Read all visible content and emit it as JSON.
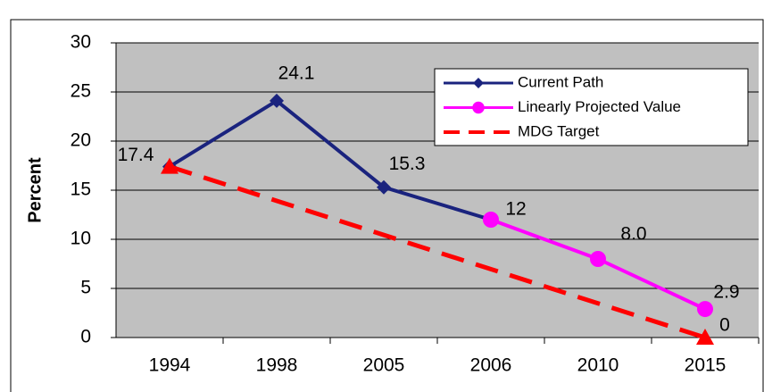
{
  "chart_data": {
    "type": "line",
    "y_label": "Percent",
    "categories": [
      "1994",
      "1998",
      "2005",
      "2006",
      "2010",
      "2015"
    ],
    "ylim": [
      0,
      30
    ],
    "yticks": [
      0,
      5,
      10,
      15,
      20,
      25,
      30
    ],
    "grid": true,
    "legend_position": "upper right",
    "series": [
      {
        "name": "Current Path",
        "color": "#1a237e",
        "marker": "diamond",
        "dash": false,
        "values": [
          17.4,
          24.1,
          15.3,
          12,
          null,
          null
        ],
        "value_labels": [
          "17.4",
          "24.1",
          "15.3",
          "12",
          null,
          null
        ]
      },
      {
        "name": "Linearly Projected Value",
        "color": "#ff00ff",
        "marker": "circle",
        "dash": false,
        "values": [
          null,
          null,
          null,
          12,
          8.0,
          2.9
        ],
        "value_labels": [
          null,
          null,
          null,
          null,
          "8.0",
          "2.9"
        ]
      },
      {
        "name": "MDG Target",
        "color": "#ff0000",
        "marker": "triangle",
        "dash": true,
        "x": [
          "1994",
          "2015"
        ],
        "values": [
          17.4,
          0
        ],
        "value_labels": [
          null,
          "0"
        ]
      }
    ]
  }
}
